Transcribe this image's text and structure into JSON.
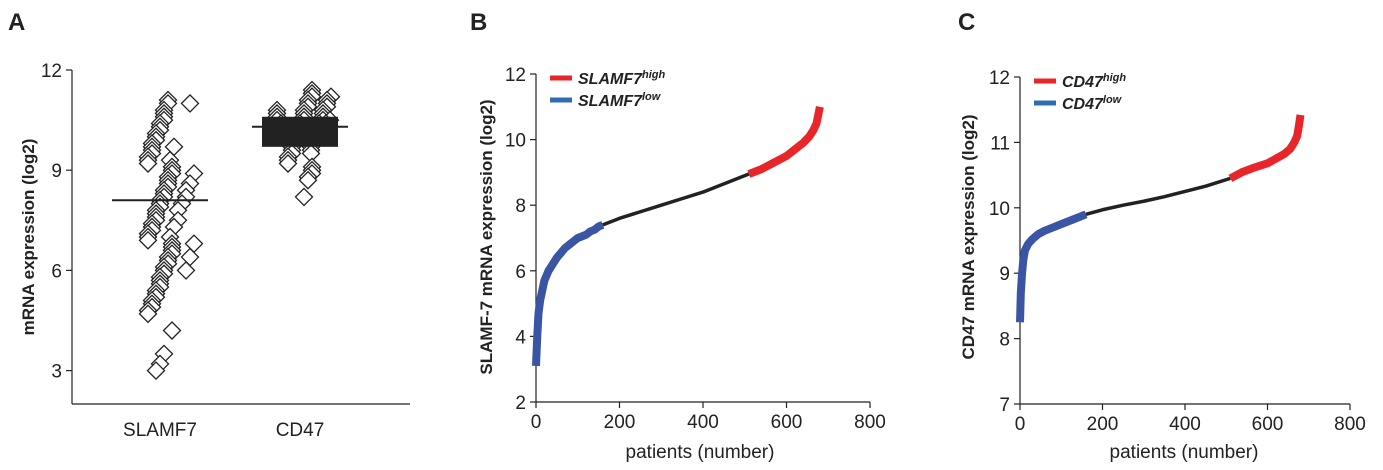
{
  "panels": {
    "a": {
      "letter": "A",
      "ylabel": "mRNA expression (log2)",
      "yticks": [
        "3",
        "6",
        "9",
        "12"
      ],
      "categories": [
        "SLAMF7",
        "CD47"
      ]
    },
    "b": {
      "letter": "B",
      "ylabel": "SLAMF-7 mRNA expression (log2)",
      "xlabel": "patients (number)",
      "yticks": [
        "2",
        "4",
        "6",
        "8",
        "10",
        "12"
      ],
      "xticks": [
        "0",
        "200",
        "400",
        "600",
        "800"
      ],
      "legend": [
        {
          "gene": "SLAMF7",
          "sup": "high",
          "color": "#e8262a"
        },
        {
          "gene": "SLAMF7",
          "sup": "low",
          "color": "#2f6cb3"
        }
      ]
    },
    "c": {
      "letter": "C",
      "ylabel": "CD47 mRNA expression (log2)",
      "xlabel": "patients (number)",
      "yticks": [
        "7",
        "8",
        "9",
        "10",
        "11",
        "12"
      ],
      "xticks": [
        "0",
        "200",
        "400",
        "600",
        "800"
      ],
      "legend": [
        {
          "gene": "CD47",
          "sup": "high",
          "color": "#e8262a"
        },
        {
          "gene": "CD47",
          "sup": "low",
          "color": "#2f6cb3"
        }
      ]
    }
  },
  "chart_data": [
    {
      "type": "scatter",
      "panel": "A",
      "ylabel": "mRNA expression (log2)",
      "ylim": [
        2,
        12
      ],
      "categories": [
        "SLAMF7",
        "CD47"
      ],
      "series": [
        {
          "category": "SLAMF7",
          "median": 8.1,
          "values": [
            11.1,
            11.0,
            11.0,
            10.8,
            10.7,
            10.6,
            10.5,
            10.4,
            10.3,
            10.2,
            10.1,
            10.0,
            9.9,
            9.8,
            9.7,
            9.7,
            9.6,
            9.5,
            9.4,
            9.3,
            9.3,
            9.2,
            9.1,
            9.0,
            8.9,
            8.9,
            8.8,
            8.7,
            8.6,
            8.6,
            8.5,
            8.4,
            8.4,
            8.3,
            8.2,
            8.2,
            8.1,
            8.0,
            8.0,
            7.9,
            7.8,
            7.8,
            7.7,
            7.6,
            7.5,
            7.5,
            7.4,
            7.3,
            7.3,
            7.2,
            7.1,
            7.0,
            7.0,
            6.9,
            6.8,
            6.8,
            6.7,
            6.6,
            6.5,
            6.4,
            6.4,
            6.3,
            6.2,
            6.1,
            6.0,
            6.0,
            5.9,
            5.8,
            5.7,
            5.6,
            5.5,
            5.4,
            5.3,
            5.2,
            5.1,
            5.0,
            4.9,
            4.8,
            4.7,
            4.2,
            3.5,
            3.2,
            3.0
          ]
        },
        {
          "category": "CD47",
          "median": 10.3,
          "values": [
            11.4,
            11.3,
            11.2,
            11.2,
            11.1,
            11.1,
            11.0,
            11.0,
            10.9,
            10.9,
            10.8,
            10.8,
            10.8,
            10.7,
            10.7,
            10.7,
            10.6,
            10.6,
            10.6,
            10.5,
            10.5,
            10.5,
            10.5,
            10.4,
            10.4,
            10.4,
            10.4,
            10.3,
            10.3,
            10.3,
            10.3,
            10.2,
            10.2,
            10.2,
            10.2,
            10.1,
            10.1,
            10.1,
            10.0,
            10.0,
            10.0,
            9.9,
            9.9,
            9.9,
            9.8,
            9.8,
            9.7,
            9.7,
            9.6,
            9.6,
            9.5,
            9.5,
            9.4,
            9.3,
            9.2,
            9.1,
            9.0,
            8.9,
            8.8,
            8.7,
            8.2
          ]
        }
      ]
    },
    {
      "type": "line",
      "panel": "B",
      "xlabel": "patients (number)",
      "ylabel": "SLAMF-7 mRNA expression (log2)",
      "xlim": [
        0,
        800
      ],
      "ylim": [
        2,
        12
      ],
      "series": [
        {
          "name": "SLAMF7 low",
          "color": "#3a55a4",
          "x": [
            0,
            3,
            6,
            10,
            15,
            20,
            30,
            40,
            50,
            60,
            70,
            80,
            90,
            100,
            110,
            120,
            130,
            140,
            150,
            160
          ],
          "y": [
            3.1,
            4.0,
            4.7,
            5.1,
            5.4,
            5.7,
            6.0,
            6.2,
            6.4,
            6.55,
            6.7,
            6.8,
            6.9,
            7.0,
            7.05,
            7.1,
            7.2,
            7.25,
            7.35,
            7.4
          ]
        },
        {
          "name": "middle",
          "color": "#222222",
          "x": [
            160,
            200,
            250,
            300,
            350,
            400,
            450,
            510
          ],
          "y": [
            7.4,
            7.6,
            7.8,
            8.0,
            8.2,
            8.4,
            8.65,
            8.95
          ]
        },
        {
          "name": "SLAMF7 high",
          "color": "#e8262a",
          "x": [
            510,
            540,
            570,
            600,
            620,
            640,
            655,
            665,
            672,
            676,
            680
          ],
          "y": [
            8.95,
            9.1,
            9.3,
            9.5,
            9.7,
            9.9,
            10.1,
            10.3,
            10.5,
            10.75,
            11.0
          ]
        }
      ]
    },
    {
      "type": "line",
      "panel": "C",
      "xlabel": "patients (number)",
      "ylabel": "CD47 mRNA expression (log2)",
      "xlim": [
        0,
        800
      ],
      "ylim": [
        7,
        12
      ],
      "series": [
        {
          "name": "CD47 low",
          "color": "#3a55a4",
          "x": [
            0,
            2,
            5,
            8,
            12,
            20,
            30,
            45,
            60,
            80,
            100,
            120,
            140,
            160
          ],
          "y": [
            8.25,
            8.7,
            9.0,
            9.2,
            9.35,
            9.45,
            9.52,
            9.6,
            9.65,
            9.7,
            9.75,
            9.8,
            9.85,
            9.9
          ]
        },
        {
          "name": "middle",
          "color": "#222222",
          "x": [
            160,
            200,
            250,
            300,
            350,
            400,
            450,
            510
          ],
          "y": [
            9.9,
            9.97,
            10.04,
            10.1,
            10.17,
            10.25,
            10.33,
            10.45
          ]
        },
        {
          "name": "CD47 high",
          "color": "#e8262a",
          "x": [
            510,
            540,
            570,
            600,
            620,
            640,
            655,
            665,
            672,
            676,
            680
          ],
          "y": [
            10.45,
            10.55,
            10.62,
            10.68,
            10.75,
            10.82,
            10.9,
            11.0,
            11.1,
            11.25,
            11.42
          ]
        }
      ]
    }
  ]
}
